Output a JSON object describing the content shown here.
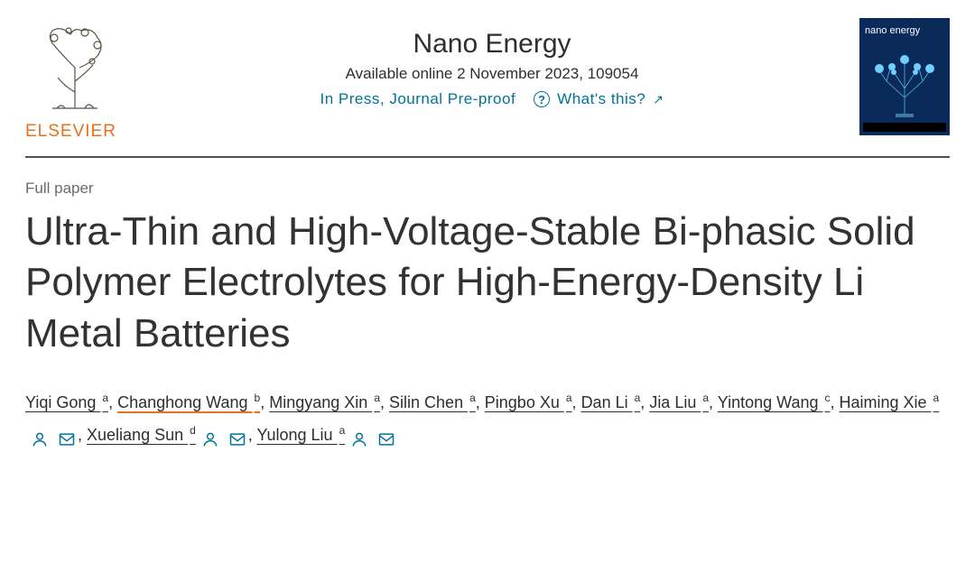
{
  "publisher": {
    "name": "ELSEVIER",
    "logo_color": "#e9711c"
  },
  "journal": {
    "title": "Nano Energy",
    "availability": "Available online 2 November 2023, 109054",
    "status": "In Press, Journal Pre-proof",
    "help_label": "What's this?"
  },
  "cover": {
    "title": "nano energy"
  },
  "article": {
    "type": "Full paper",
    "title": "Ultra-Thin and High-Voltage-Stable Bi-phasic Solid Polymer Electrolytes for High-Energy-Density Li Metal Batteries"
  },
  "authors": [
    {
      "name": "Yiqi Gong",
      "affil": "a",
      "highlighted": false,
      "person": false,
      "mail": false
    },
    {
      "name": "Changhong Wang",
      "affil": "b",
      "highlighted": true,
      "person": false,
      "mail": false
    },
    {
      "name": "Mingyang Xin",
      "affil": "a",
      "highlighted": false,
      "person": false,
      "mail": false
    },
    {
      "name": "Silin Chen",
      "affil": "a",
      "highlighted": false,
      "person": false,
      "mail": false
    },
    {
      "name": "Pingbo Xu",
      "affil": "a",
      "highlighted": false,
      "person": false,
      "mail": false
    },
    {
      "name": "Dan Li",
      "affil": "a",
      "highlighted": false,
      "person": false,
      "mail": false
    },
    {
      "name": "Jia Liu",
      "affil": "a",
      "highlighted": false,
      "person": false,
      "mail": false
    },
    {
      "name": "Yintong Wang",
      "affil": "c",
      "highlighted": false,
      "person": false,
      "mail": false
    },
    {
      "name": "Haiming Xie",
      "affil": "a",
      "highlighted": false,
      "person": true,
      "mail": true
    },
    {
      "name": "Xueliang Sun",
      "affil": "d",
      "highlighted": false,
      "person": true,
      "mail": true
    },
    {
      "name": "Yulong Liu",
      "affil": "a",
      "highlighted": false,
      "person": true,
      "mail": true
    }
  ],
  "colors": {
    "link": "#007398",
    "text": "#2e2e2e",
    "title": "#323232",
    "muted": "#6b6b6b",
    "accent": "#e9711c",
    "divider": "#505050"
  },
  "typography": {
    "journal_title_fontsize": 30,
    "article_title_fontsize": 44,
    "body_fontsize": 18,
    "meta_fontsize": 17
  }
}
